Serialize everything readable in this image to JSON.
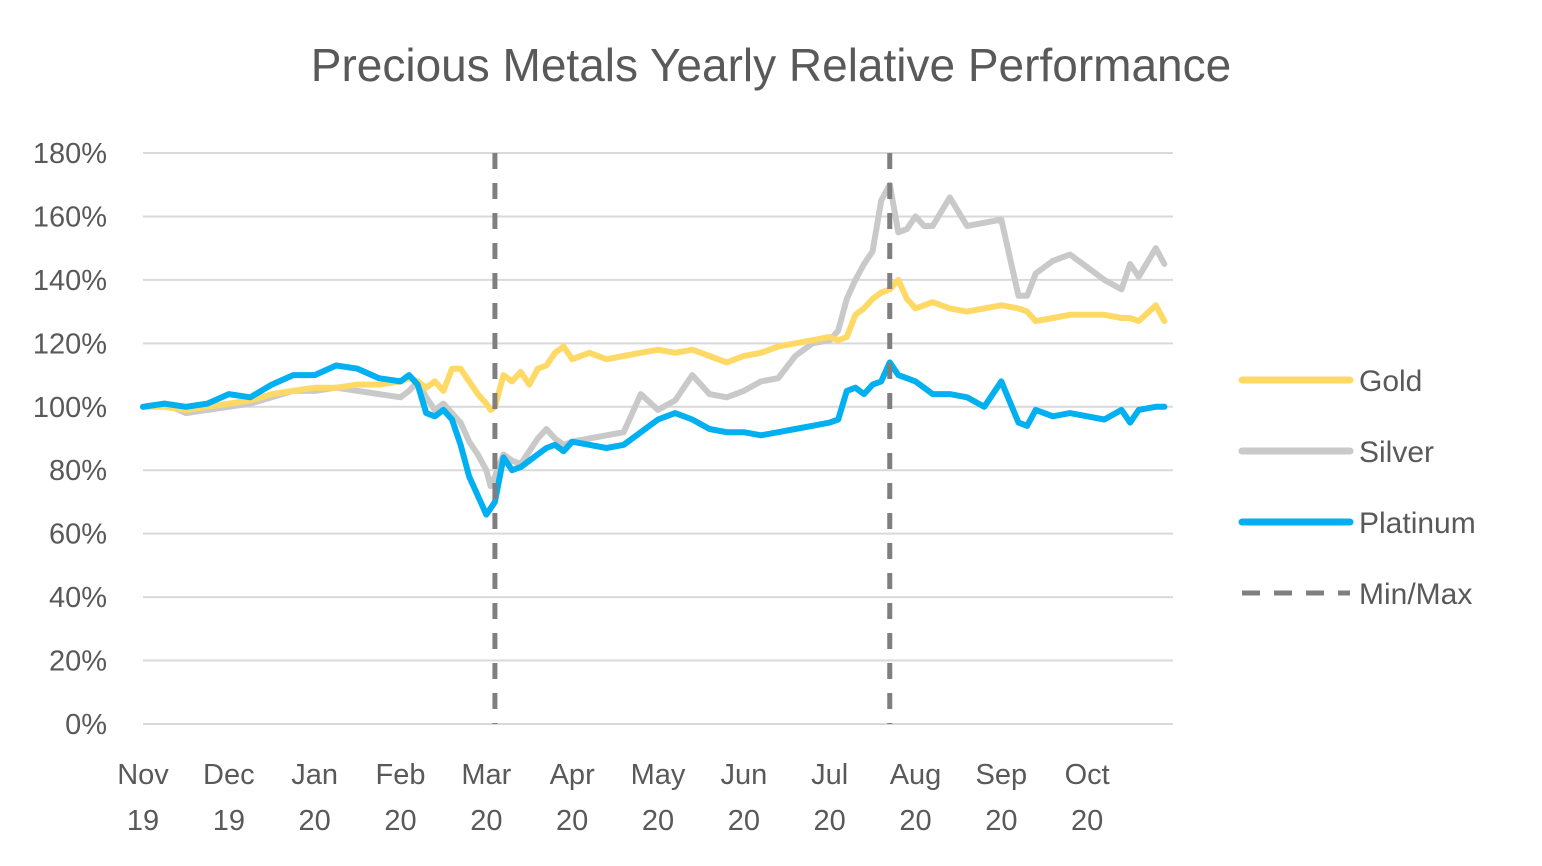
{
  "chart_data": {
    "type": "line",
    "title": "Precious Metals Yearly Relative Performance",
    "xlabel": "",
    "ylabel": "",
    "ylim": [
      0,
      180
    ],
    "yticks": [
      0,
      20,
      40,
      60,
      80,
      100,
      120,
      140,
      160,
      180
    ],
    "ytick_labels": [
      "0%",
      "20%",
      "40%",
      "60%",
      "80%",
      "100%",
      "120%",
      "140%",
      "160%",
      "180%"
    ],
    "xlim": [
      0,
      12
    ],
    "xtick_positions": [
      0,
      1,
      2,
      3,
      4,
      5,
      6,
      7,
      8,
      9,
      10,
      11
    ],
    "xtick_labels": [
      [
        "Nov",
        "19"
      ],
      [
        "Dec",
        "19"
      ],
      [
        "Jan",
        "20"
      ],
      [
        "Feb",
        "20"
      ],
      [
        "Mar",
        "20"
      ],
      [
        "Apr",
        "20"
      ],
      [
        "May",
        "20"
      ],
      [
        "Jun",
        "20"
      ],
      [
        "Jul",
        "20"
      ],
      [
        "Aug",
        "20"
      ],
      [
        "Sep",
        "20"
      ],
      [
        "Oct",
        "20"
      ]
    ],
    "grid": true,
    "legend_position": "right",
    "series": [
      {
        "name": "Gold",
        "color": "#FFD966",
        "x": [
          0,
          0.25,
          0.5,
          0.75,
          1,
          1.25,
          1.5,
          1.75,
          2,
          2.25,
          2.5,
          2.75,
          3,
          3.1,
          3.2,
          3.3,
          3.4,
          3.5,
          3.6,
          3.7,
          3.8,
          3.9,
          4.0,
          4.05,
          4.1,
          4.2,
          4.3,
          4.4,
          4.5,
          4.6,
          4.7,
          4.8,
          4.9,
          5.0,
          5.2,
          5.4,
          5.6,
          5.8,
          6.0,
          6.2,
          6.4,
          6.6,
          6.8,
          7.0,
          7.2,
          7.4,
          7.6,
          7.8,
          8.0,
          8.1,
          8.2,
          8.3,
          8.4,
          8.5,
          8.6,
          8.7,
          8.8,
          8.9,
          9.0,
          9.1,
          9.2,
          9.4,
          9.6,
          9.8,
          10.0,
          10.2,
          10.3,
          10.4,
          10.6,
          10.8,
          11.0,
          11.2,
          11.4,
          11.5,
          11.6,
          11.8,
          11.9
        ],
        "y": [
          100,
          100,
          99,
          100,
          101,
          102,
          104,
          105,
          106,
          106,
          107,
          107,
          108,
          109,
          108,
          106,
          108,
          105,
          112,
          112,
          108,
          104,
          101,
          99,
          100,
          110,
          108,
          111,
          107,
          112,
          113,
          117,
          119,
          115,
          117,
          115,
          116,
          117,
          118,
          117,
          118,
          116,
          114,
          116,
          117,
          119,
          120,
          121,
          122,
          121,
          122,
          129,
          131,
          134,
          136,
          137,
          140,
          134,
          131,
          132,
          133,
          131,
          130,
          131,
          132,
          131,
          130,
          127,
          128,
          129,
          129,
          129,
          128,
          128,
          127,
          132,
          127
        ]
      },
      {
        "name": "Silver",
        "color": "#C9C9C9",
        "x": [
          0,
          0.25,
          0.5,
          0.75,
          1,
          1.25,
          1.5,
          1.75,
          2,
          2.25,
          2.5,
          2.75,
          3,
          3.1,
          3.2,
          3.3,
          3.4,
          3.5,
          3.6,
          3.7,
          3.8,
          3.9,
          4.0,
          4.05,
          4.1,
          4.2,
          4.3,
          4.4,
          4.5,
          4.6,
          4.7,
          4.8,
          4.9,
          5.0,
          5.2,
          5.4,
          5.6,
          5.8,
          6.0,
          6.2,
          6.4,
          6.6,
          6.8,
          7.0,
          7.2,
          7.4,
          7.6,
          7.8,
          8.0,
          8.1,
          8.2,
          8.3,
          8.4,
          8.5,
          8.6,
          8.7,
          8.8,
          8.9,
          9.0,
          9.1,
          9.2,
          9.4,
          9.6,
          9.8,
          10.0,
          10.2,
          10.3,
          10.4,
          10.6,
          10.8,
          11.0,
          11.2,
          11.4,
          11.5,
          11.6,
          11.8,
          11.9
        ],
        "y": [
          100,
          101,
          98,
          99,
          100,
          101,
          103,
          105,
          105,
          106,
          105,
          104,
          103,
          105,
          108,
          103,
          99,
          101,
          98,
          95,
          89,
          85,
          80,
          75,
          78,
          85,
          83,
          82,
          86,
          90,
          93,
          90,
          88,
          89,
          90,
          91,
          92,
          104,
          99,
          102,
          110,
          104,
          103,
          105,
          108,
          109,
          116,
          120,
          121,
          124,
          134,
          140,
          145,
          149,
          165,
          170,
          155,
          156,
          160,
          157,
          157,
          166,
          157,
          158,
          159,
          135,
          135,
          142,
          146,
          148,
          144,
          140,
          137,
          145,
          141,
          150,
          145
        ]
      },
      {
        "name": "Platinum",
        "color": "#00B0F0",
        "x": [
          0,
          0.25,
          0.5,
          0.75,
          1,
          1.25,
          1.5,
          1.75,
          2,
          2.25,
          2.5,
          2.75,
          3,
          3.1,
          3.2,
          3.3,
          3.4,
          3.5,
          3.6,
          3.7,
          3.8,
          3.9,
          4.0,
          4.05,
          4.1,
          4.2,
          4.3,
          4.4,
          4.5,
          4.6,
          4.7,
          4.8,
          4.9,
          5.0,
          5.2,
          5.4,
          5.6,
          5.8,
          6.0,
          6.2,
          6.4,
          6.6,
          6.8,
          7.0,
          7.2,
          7.4,
          7.6,
          7.8,
          8.0,
          8.1,
          8.2,
          8.3,
          8.4,
          8.5,
          8.6,
          8.7,
          8.8,
          8.9,
          9.0,
          9.1,
          9.2,
          9.4,
          9.6,
          9.8,
          10.0,
          10.2,
          10.3,
          10.4,
          10.6,
          10.8,
          11.0,
          11.2,
          11.4,
          11.5,
          11.6,
          11.8,
          11.9
        ],
        "y": [
          100,
          101,
          100,
          101,
          104,
          103,
          107,
          110,
          110,
          113,
          112,
          109,
          108,
          110,
          107,
          98,
          97,
          99,
          96,
          88,
          78,
          72,
          66,
          68,
          70,
          84,
          80,
          81,
          83,
          85,
          87,
          88,
          86,
          89,
          88,
          87,
          88,
          92,
          96,
          98,
          96,
          93,
          92,
          92,
          91,
          92,
          93,
          94,
          95,
          96,
          105,
          106,
          104,
          107,
          108,
          114,
          110,
          109,
          108,
          106,
          104,
          104,
          103,
          100,
          108,
          95,
          94,
          99,
          97,
          98,
          97,
          96,
          99,
          95,
          99,
          100,
          100
        ]
      },
      {
        "name": "Min/Max",
        "color": "#7F7F7F",
        "style": "dashed",
        "vlines": [
          4.1,
          8.7
        ]
      }
    ]
  }
}
